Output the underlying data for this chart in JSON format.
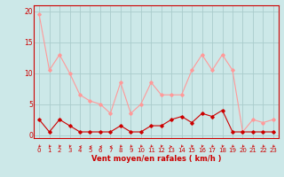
{
  "hours": [
    0,
    1,
    2,
    3,
    4,
    5,
    6,
    7,
    8,
    9,
    10,
    11,
    12,
    13,
    14,
    15,
    16,
    17,
    18,
    19,
    20,
    21,
    22,
    23
  ],
  "wind_avg": [
    2.5,
    0.5,
    2.5,
    1.5,
    0.5,
    0.5,
    0.5,
    0.5,
    1.5,
    0.5,
    0.5,
    1.5,
    1.5,
    2.5,
    3.0,
    2.0,
    3.5,
    3.0,
    4.0,
    0.5,
    0.5,
    0.5,
    0.5,
    0.5
  ],
  "wind_gust": [
    19.5,
    10.5,
    13.0,
    10.0,
    6.5,
    5.5,
    5.0,
    3.5,
    8.5,
    3.5,
    5.0,
    8.5,
    6.5,
    6.5,
    6.5,
    10.5,
    13.0,
    10.5,
    13.0,
    10.5,
    0.5,
    2.5,
    2.0,
    2.5
  ],
  "avg_color": "#cc0000",
  "gust_color": "#ff9999",
  "bg_color": "#cce8e8",
  "grid_color": "#aacccc",
  "xlabel": "Vent moyen/en rafales ( km/h )",
  "ylabel_ticks": [
    0,
    5,
    10,
    15,
    20
  ],
  "ylim": [
    -0.5,
    21
  ],
  "xlim": [
    -0.5,
    23.5
  ],
  "tick_color": "#cc0000",
  "label_color": "#cc0000",
  "spine_color": "#cc0000"
}
